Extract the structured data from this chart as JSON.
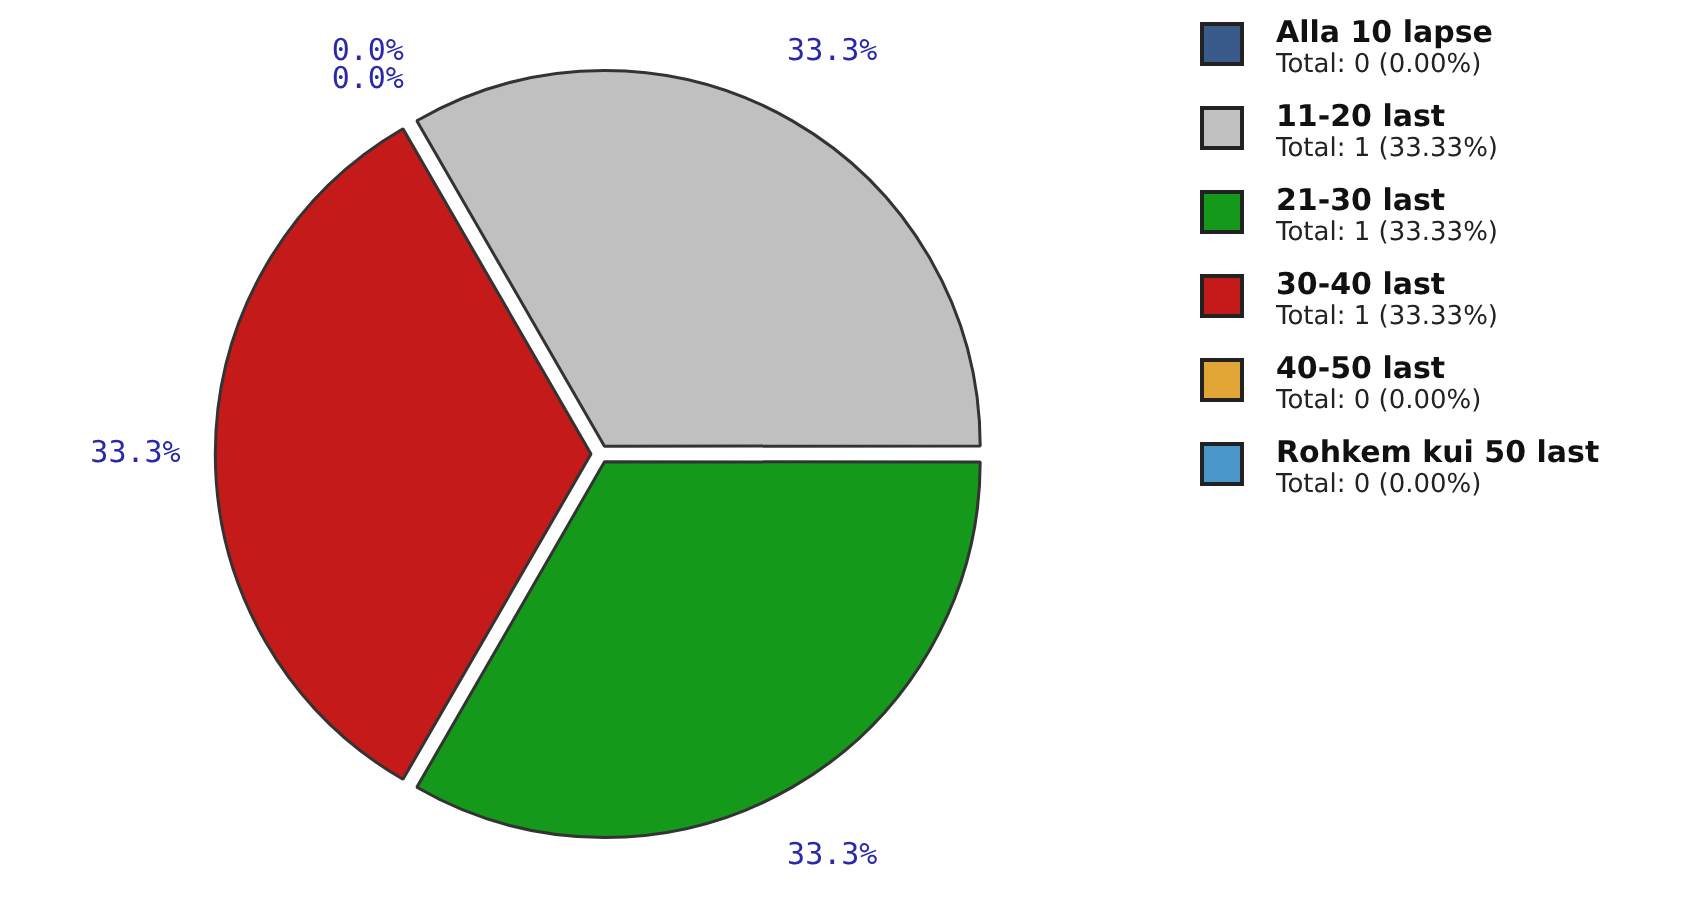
{
  "chart_data": {
    "type": "pie",
    "categories": [
      "Alla 10 lapse",
      "11-20 last",
      "21-30 last",
      "30-40 last",
      "40-50 last",
      "Rohkem kui 50 last"
    ],
    "values": [
      0,
      33.33,
      33.33,
      33.33,
      0,
      0
    ],
    "colors": [
      "#3a5a8c",
      "#c0c0c0",
      "#14991a",
      "#c41a1a",
      "#e0a535",
      "#4a96c8"
    ],
    "value_labels": [
      "0.0%",
      "33.3%",
      "33.3%",
      "33.3%",
      "0.0%",
      null
    ],
    "annotations": [
      "Total: 0 (0.00%)",
      "Total: 1 (33.33%)",
      "Total: 1 (33.33%)",
      "Total: 1 (33.33%)",
      "Total: 0 (0.00%)",
      "Total: 0 (0.00%)"
    ],
    "legend": "right"
  }
}
